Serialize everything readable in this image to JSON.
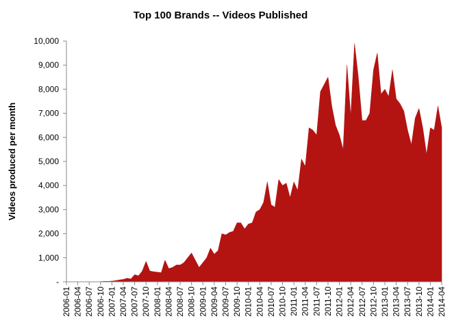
{
  "chart_data": {
    "type": "area",
    "title": "Top 100 Brands -- Videos Published",
    "y_label": "Videos produced per month",
    "color": "#b31412",
    "categories": [
      "2006-01",
      null,
      null,
      "2006-04",
      null,
      null,
      "2006-07",
      null,
      null,
      "2006-10",
      null,
      null,
      "2007-01",
      null,
      null,
      "2007-04",
      null,
      null,
      "2007-07",
      null,
      null,
      "2007-10",
      null,
      null,
      "2008-01",
      null,
      null,
      "2008-04",
      null,
      null,
      "2008-07",
      null,
      null,
      "2008-10",
      null,
      null,
      "2009-01",
      null,
      null,
      "2009-04",
      null,
      null,
      "2009-07",
      null,
      null,
      "2009-10",
      null,
      null,
      "2010-01",
      null,
      null,
      "2010-04",
      null,
      null,
      "2010-07",
      null,
      null,
      "2010-10",
      null,
      null,
      "2011-01",
      null,
      null,
      "2011-04",
      null,
      null,
      "2011-07",
      null,
      null,
      "2011-10",
      null,
      null,
      "2012-01",
      null,
      null,
      "2012-04",
      null,
      null,
      "2012-07",
      null,
      null,
      "2012-10",
      null,
      null,
      "2013-01",
      null,
      null,
      "2013-04",
      null,
      null,
      "2013-07",
      null,
      null,
      "2013-10",
      null,
      null,
      "2014-01",
      null,
      null,
      "2014-04"
    ],
    "values": [
      0,
      0,
      0,
      0,
      0,
      0,
      0,
      0,
      0,
      10,
      20,
      20,
      30,
      50,
      80,
      100,
      150,
      120,
      300,
      250,
      450,
      850,
      450,
      420,
      400,
      380,
      900,
      550,
      600,
      700,
      700,
      800,
      1000,
      1200,
      900,
      600,
      800,
      1000,
      1400,
      1150,
      1300,
      2000,
      1950,
      2050,
      2100,
      2450,
      2450,
      2200,
      2400,
      2450,
      2900,
      3000,
      3300,
      4150,
      3200,
      3100,
      4250,
      4000,
      4100,
      3500,
      4150,
      3800,
      5100,
      4800,
      6400,
      6300,
      6100,
      7900,
      8200,
      8500,
      7300,
      6500,
      6100,
      5500,
      9000,
      6900,
      9900,
      8500,
      6700,
      6700,
      7000,
      8800,
      9500,
      7800,
      8000,
      7700,
      8800,
      7600,
      7400,
      7100,
      6300,
      5700,
      6800,
      7200,
      6400,
      5300,
      6400,
      6300,
      7300,
      6400
    ],
    "ylim": [
      0,
      10000
    ],
    "yticks": [
      {
        "value": 0,
        "label": "-"
      },
      {
        "value": 1000,
        "label": "1,000"
      },
      {
        "value": 2000,
        "label": "2,000"
      },
      {
        "value": 3000,
        "label": "3,000"
      },
      {
        "value": 4000,
        "label": "4,000"
      },
      {
        "value": 5000,
        "label": "5,000"
      },
      {
        "value": 6000,
        "label": "6,000"
      },
      {
        "value": 7000,
        "label": "7,000"
      },
      {
        "value": 8000,
        "label": "8,000"
      },
      {
        "value": 9000,
        "label": "9,000"
      },
      {
        "value": 10000,
        "label": "10,000"
      }
    ]
  }
}
